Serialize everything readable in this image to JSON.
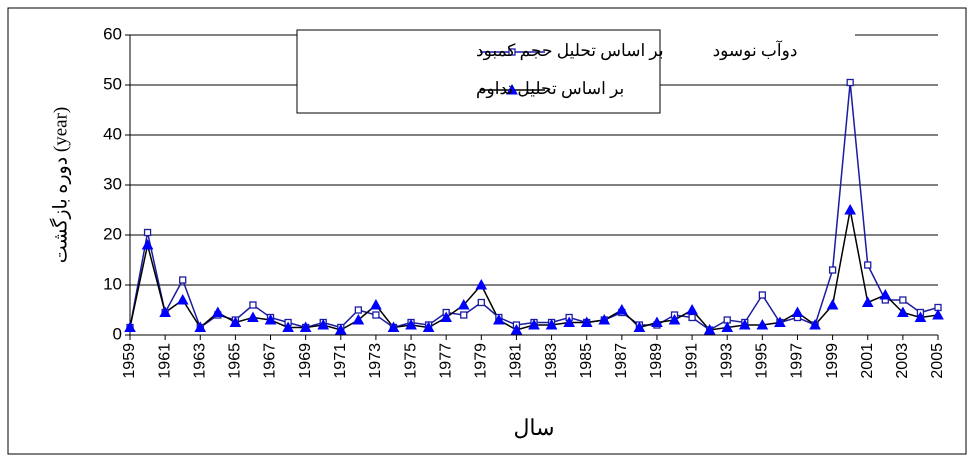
{
  "chart_data": {
    "type": "line",
    "title": "دوآب نوسود",
    "x_label": "سال",
    "y_label": "دوره بازگشت (year)",
    "x": [
      1959,
      1960,
      1961,
      1962,
      1963,
      1964,
      1965,
      1966,
      1967,
      1968,
      1969,
      1970,
      1971,
      1972,
      1973,
      1974,
      1975,
      1976,
      1977,
      1978,
      1979,
      1980,
      1981,
      1982,
      1983,
      1984,
      1985,
      1986,
      1987,
      1988,
      1989,
      1990,
      1991,
      1992,
      1993,
      1994,
      1995,
      1996,
      1997,
      1998,
      1999,
      2000,
      2001,
      2002,
      2003,
      2004,
      2005
    ],
    "xlim": [
      1959,
      2005
    ],
    "xticks": [
      1959,
      1961,
      1963,
      1965,
      1967,
      1969,
      1971,
      1973,
      1975,
      1977,
      1979,
      1981,
      1983,
      1985,
      1987,
      1989,
      1991,
      1993,
      1995,
      1997,
      1999,
      2001,
      2003,
      2005
    ],
    "ylim": [
      0,
      60
    ],
    "yticks": [
      0,
      10,
      20,
      30,
      40,
      50,
      60
    ],
    "grid": true,
    "series": [
      {
        "name": "بر اساس تحلیل حجم کمبود",
        "color": "#1c1ca0",
        "line_color": "#1c1ca0",
        "marker": "square",
        "values": [
          1.5,
          20.5,
          4.5,
          11,
          1.5,
          4,
          3,
          6,
          3.5,
          2.5,
          1.5,
          2.5,
          1.5,
          5,
          4,
          1.5,
          2.5,
          2,
          4.5,
          4,
          6.5,
          3.5,
          2,
          2.5,
          2.5,
          3.5,
          2.5,
          3,
          4.5,
          2,
          2,
          4,
          3.5,
          1,
          3,
          2.5,
          8,
          2.5,
          3.5,
          2,
          13,
          50.5,
          14,
          7,
          7,
          4.5,
          5.5
        ]
      },
      {
        "name": "بر اساس تحلیل تداوم",
        "color": "#0000ff",
        "line_color": "#000000",
        "marker": "triangle",
        "values": [
          1.5,
          18,
          4.5,
          7,
          1.5,
          4.5,
          2.5,
          3.5,
          3,
          1.5,
          1.5,
          2,
          1,
          3,
          6,
          1.5,
          2,
          1.5,
          3.5,
          6,
          10,
          3,
          1,
          2,
          2,
          2.5,
          2.5,
          3,
          5,
          1.5,
          2.5,
          3,
          5,
          1,
          1.5,
          2,
          2,
          2.5,
          4.5,
          2,
          6,
          25,
          6.5,
          8,
          4.5,
          3.5,
          4
        ]
      }
    ]
  }
}
